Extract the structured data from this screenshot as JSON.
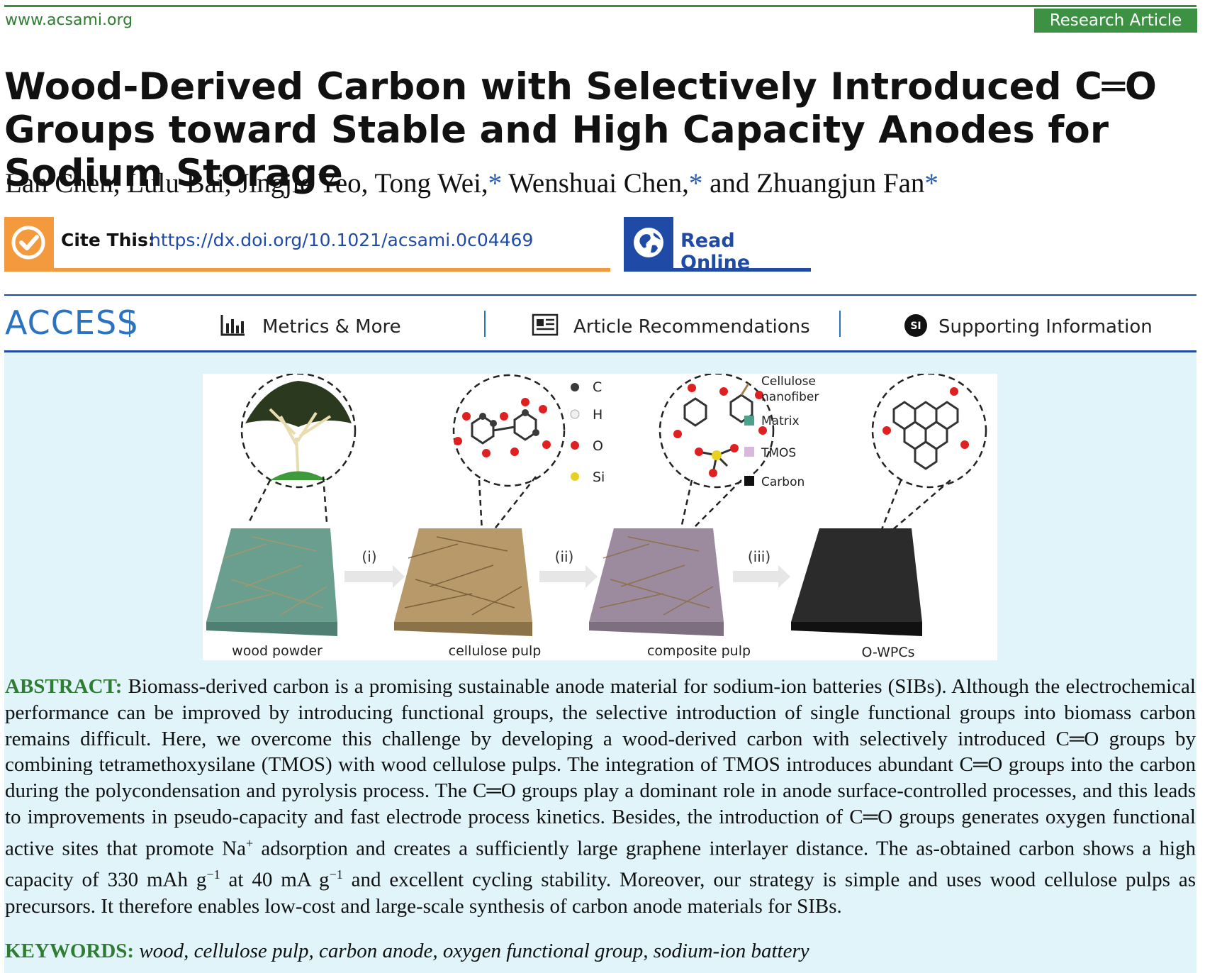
{
  "header": {
    "site": "www.acsami.org",
    "article_type": "Research Article"
  },
  "title": "Wood-Derived Carbon with Selectively Introduced C═O Groups toward Stable and High Capacity Anodes for Sodium Storage",
  "authors": {
    "list_before": "Lan Chen, Lulu Bai, Jingjie Yeo, Tong Wei,",
    "star1": "*",
    "name5": " Wenshuai Chen,",
    "star2": "*",
    "name6": " and Zhuangjun Fan",
    "star3": "*"
  },
  "cite": {
    "label": "Cite This:",
    "link": "https://dx.doi.org/10.1021/acsami.0c04469"
  },
  "read_online": "Read Online",
  "access_bar": {
    "access": "ACCESS",
    "metrics": "Metrics & More",
    "recommendations": "Article Recommendations",
    "supporting": "Supporting Information",
    "si_badge": "SI"
  },
  "figure": {
    "legend_atoms": [
      "C",
      "H",
      "O",
      "Si"
    ],
    "legend_materials": [
      "Cellulose",
      "nanofiber",
      "Matrix",
      "TMOS",
      "Carbon"
    ],
    "steps": [
      "(i)",
      "(ii)",
      "(iii)"
    ],
    "stages": [
      "wood powder",
      "cellulose pulp",
      "composite pulp",
      "O-WPCs"
    ],
    "colors": {
      "atom_c": "#3a3a3a",
      "atom_h": "#f0f0f0",
      "atom_o": "#e02020",
      "atom_si": "#e8d020",
      "matrix": "#4fa08a",
      "tmos": "#d9b8e0",
      "carbon": "#111111",
      "fiber": "#a08050"
    }
  },
  "abstract": {
    "label": "ABSTRACT:",
    "p1": " Biomass-derived carbon is a promising sustainable anode material for sodium-ion batteries (SIBs). Although the electrochemical performance can be improved by introducing functional groups, the selective introduction of single functional groups into biomass carbon remains difficult. Here, we overcome this challenge by developing a wood-derived carbon with selectively introduced C═O groups by combining tetramethoxysilane (TMOS) with wood cellulose pulps. The integration of TMOS introduces abundant C═O groups into the carbon during the polycondensation and pyrolysis process. The C═O groups play a dominant role in anode surface-controlled processes, and this leads to improvements in pseudo-capacity and fast electrode process kinetics. Besides, the introduction of C═O groups generates oxygen functional active sites that promote Na",
    "sup1": "+",
    "p2": " adsorption and creates a sufficiently large graphene interlayer distance. The as-obtained carbon shows a high capacity of 330 mAh g",
    "sup2": "−1",
    "p3": " at 40 mA g",
    "sup3": "−1",
    "p4": " and excellent cycling stability. Moreover, our strategy is simple and uses wood cellulose pulps as precursors. It therefore enables low-cost and large-scale synthesis of carbon anode materials for SIBs."
  },
  "keywords": {
    "label": "KEYWORDS:",
    "text": "wood, cellulose pulp, carbon anode, oxygen functional group, sodium-ion battery"
  },
  "colors": {
    "green": "#3c9142",
    "orange": "#f49a3e",
    "blue": "#1f4aa6",
    "access_blue": "#2a72c2",
    "abstract_bg": "#e0f4fa"
  }
}
